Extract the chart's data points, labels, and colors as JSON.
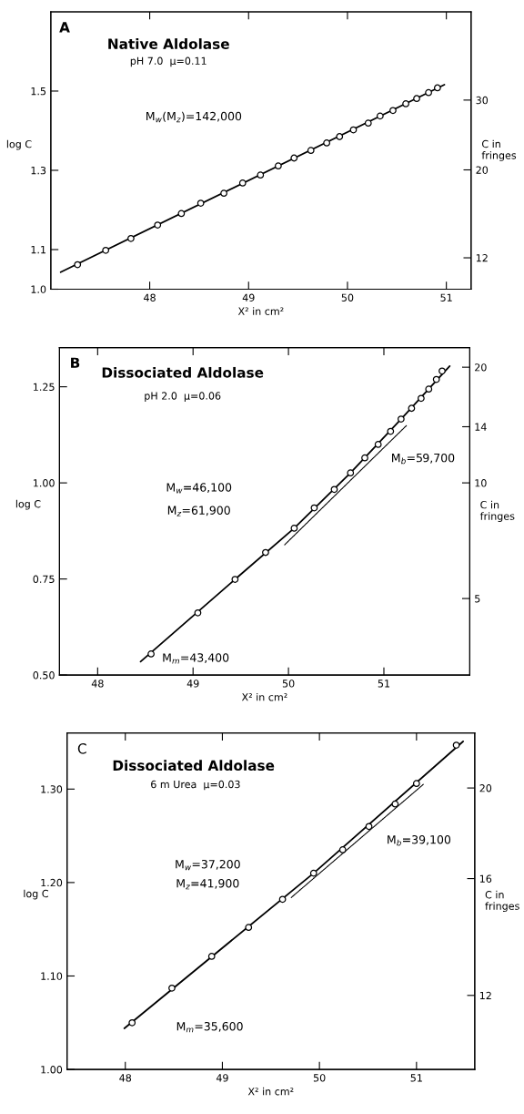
{
  "chart_data": [
    {
      "type": "scatter",
      "title": "Native Aldolase",
      "subtitle": "pH 7.0  μ=0.11",
      "xlabel": "X² in cm²",
      "ylabel": "log C",
      "y2label": "C in\nfringes",
      "log": "y2",
      "annotations": [
        "A",
        "M$_{w}$(M$_{z}$)=142,000"
      ],
      "xlim": [
        47.0,
        51.25
      ],
      "xticks": [
        48,
        49,
        50,
        51
      ],
      "ylim": [
        1.0,
        1.7
      ],
      "yticks": [
        {
          "value": 1.0,
          "label": "1.0"
        },
        1.1,
        1.3,
        1.5
      ],
      "y2lim": [
        10,
        50.1
      ],
      "y2ticks": [
        12,
        20,
        30
      ],
      "series": [
        {
          "type": "line",
          "color": "#000000",
          "line_style": "solid",
          "x": [
            47.1,
            50.98
          ],
          "values": [
            1.043,
            1.516
          ]
        },
        {
          "color": "#000000",
          "marker": "circle",
          "x": [
            47.27,
            47.555,
            47.81,
            48.08,
            48.32,
            48.516,
            48.75,
            48.94,
            49.12,
            49.3,
            49.46,
            49.63,
            49.79,
            49.92,
            50.06,
            50.21,
            50.33,
            50.46,
            50.59,
            50.7,
            50.82,
            50.91
          ],
          "values": [
            1.062,
            1.098,
            1.128,
            1.162,
            1.191,
            1.217,
            1.242,
            1.268,
            1.288,
            1.311,
            1.331,
            1.35,
            1.369,
            1.385,
            1.402,
            1.419,
            1.437,
            1.451,
            1.468,
            1.481,
            1.496,
            1.508
          ]
        }
      ]
    },
    {
      "type": "scatter",
      "title": "Dissociated Aldolase",
      "subtitle": "pH 2.0  μ=0.06",
      "xlabel": "X² in cm²",
      "ylabel": "log C",
      "y2label": "C in\nfringes",
      "log": "y2",
      "annotations": [
        "B",
        "M$_{w}$=46,100",
        "M$_{z}$=61,900",
        "M$_{b}$=59,700",
        "M$_{m}$=43,400"
      ],
      "xlim": [
        47.6,
        51.9
      ],
      "xticks": [
        48,
        49,
        50,
        51
      ],
      "ylim": [
        0.5,
        1.352
      ],
      "yticks": [
        {
          "value": 0.5,
          "label": "0.50"
        },
        {
          "value": 0.75,
          "label": "0.75"
        },
        {
          "value": 1.0,
          "label": "1.00"
        },
        {
          "value": 1.25,
          "label": "1.25"
        }
      ],
      "y2lim": [
        3.16,
        22.5
      ],
      "y2ticks": [
        5,
        10,
        14,
        20
      ],
      "series": [
        {
          "type": "line",
          "color": "#000000",
          "line_style": "solid",
          "x": [
            48.45,
            49.44,
            50.06,
            50.65,
            51.18,
            51.69
          ],
          "values": [
            0.535,
            0.749,
            0.882,
            1.026,
            1.166,
            1.304
          ]
        },
        {
          "type": "line",
          "color": "#000000",
          "line_style": "dotted",
          "x": [
            49.96,
            51.24
          ],
          "values": [
            0.839,
            1.15
          ]
        },
        {
          "color": "#000000",
          "marker": "circle",
          "x": [
            48.56,
            49.05,
            49.44,
            49.76,
            50.06,
            50.27,
            50.48,
            50.65,
            50.8,
            50.94,
            51.07,
            51.18,
            51.29,
            51.39,
            51.47,
            51.55,
            51.61
          ],
          "values": [
            0.555,
            0.662,
            0.749,
            0.819,
            0.882,
            0.935,
            0.983,
            1.026,
            1.065,
            1.1,
            1.134,
            1.166,
            1.194,
            1.22,
            1.244,
            1.269,
            1.291
          ]
        }
      ]
    },
    {
      "type": "scatter",
      "title": "Dissociated Aldolase",
      "subtitle": "6 m Urea  μ=0.03",
      "xlabel": "X² in cm²",
      "ylabel": "log C",
      "y2label": "C in\nfringes",
      "log": "y2",
      "annotations": [
        "C",
        "M$_{w}$=37,200",
        "M$_{z}$=41,900",
        "M$_{b}$=39,100",
        "M$_{m}$=35,600"
      ],
      "xlim": [
        47.4,
        51.6
      ],
      "xticks": [
        48,
        49,
        50,
        51
      ],
      "ylim": [
        1.0,
        1.36
      ],
      "yticks": [
        {
          "value": 1.0,
          "label": "1.00"
        },
        {
          "value": 1.1,
          "label": "1.10"
        },
        {
          "value": 1.2,
          "label": "1.20"
        },
        {
          "value": 1.3,
          "label": "1.30"
        }
      ],
      "y2lim": [
        10,
        22.9
      ],
      "y2ticks": [
        12,
        16,
        20
      ],
      "series": [
        {
          "type": "line",
          "color": "#000000",
          "line_style": "solid",
          "x": [
            47.99,
            49.94,
            51.48
          ],
          "values": [
            1.044,
            1.21,
            1.351
          ]
        },
        {
          "type": "line",
          "color": "#000000",
          "line_style": "dotted",
          "x": [
            49.71,
            51.07
          ],
          "values": [
            1.184,
            1.305
          ]
        },
        {
          "color": "#000000",
          "marker": "circle",
          "x": [
            48.07,
            48.48,
            48.89,
            49.27,
            49.62,
            49.94,
            50.24,
            50.51,
            50.78,
            51.0,
            51.41
          ],
          "values": [
            1.05,
            1.087,
            1.121,
            1.152,
            1.182,
            1.21,
            1.235,
            1.26,
            1.284,
            1.306,
            1.347
          ]
        }
      ]
    }
  ]
}
